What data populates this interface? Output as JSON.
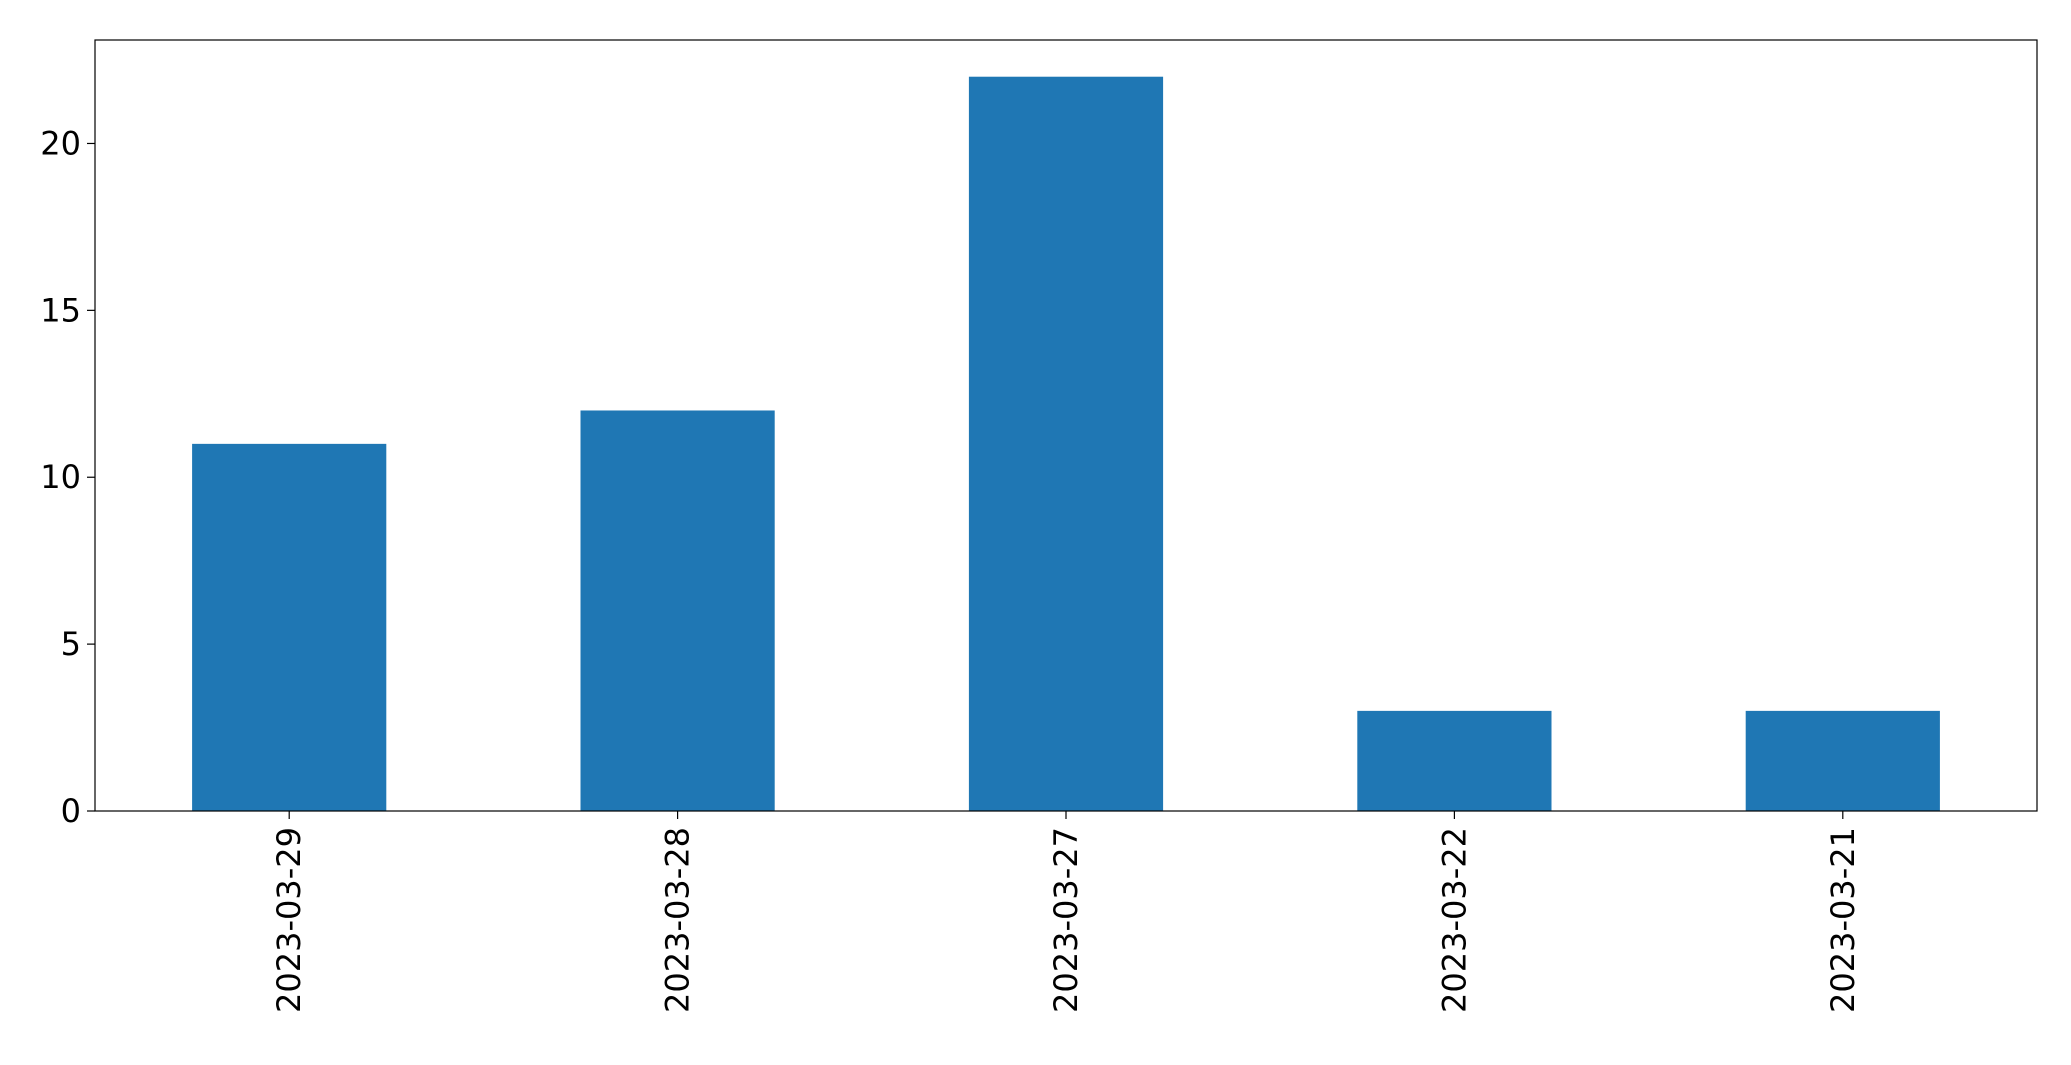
{
  "chart_data": {
    "type": "bar",
    "categories": [
      "2023-03-29",
      "2023-03-28",
      "2023-03-27",
      "2023-03-22",
      "2023-03-21"
    ],
    "values": [
      11,
      12,
      22,
      3,
      3
    ],
    "title": "",
    "xlabel": "",
    "ylabel": "",
    "ylim": [
      0,
      23.1
    ],
    "yticks": [
      0,
      5,
      10,
      15,
      20
    ],
    "grid": false,
    "legend": "none",
    "colors": {
      "bar": "#1f77b4",
      "axis": "#000000",
      "background": "#ffffff"
    }
  }
}
